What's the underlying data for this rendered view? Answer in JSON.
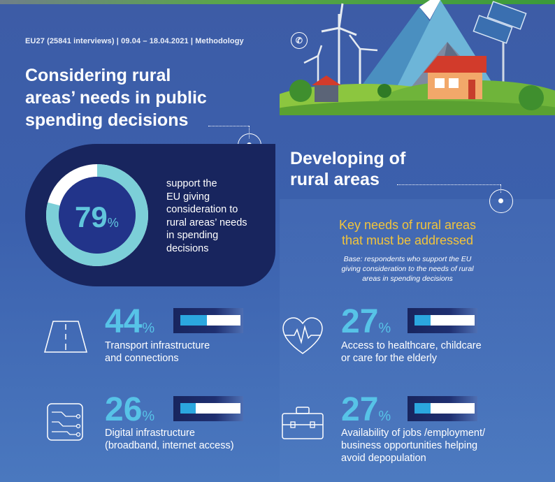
{
  "header": {
    "meta": "EU27 (25841 interviews) | 09.04 – 18.04.2021 | Methodology",
    "title_lines": [
      "Considering rural",
      "areas’ needs in public",
      "spending decisions"
    ]
  },
  "support": {
    "percent": "79",
    "unit": "%",
    "value_fraction": 0.79,
    "text_lines": [
      "support the",
      "EU giving",
      "consideration to",
      "rural areas’ needs",
      "in spending",
      "decisions"
    ]
  },
  "developing": {
    "title_lines": [
      "Developing of",
      "rural areas"
    ],
    "key_title_lines": [
      "Key needs of rural areas",
      "that must be addressed"
    ],
    "base_lines": [
      "Base: respondents who support the EU",
      "giving consideration to the needs of rural",
      "areas in spending decisions"
    ]
  },
  "stats": [
    {
      "value": "44",
      "unit": "%",
      "fraction": 0.44,
      "icon": "road-icon",
      "lines": [
        "Transport infrastructure",
        "and connections"
      ]
    },
    {
      "value": "27",
      "unit": "%",
      "fraction": 0.27,
      "icon": "heartbeat-icon",
      "lines": [
        "Access to healthcare, childcare",
        "or care for the elderly"
      ]
    },
    {
      "value": "26",
      "unit": "%",
      "fraction": 0.26,
      "icon": "circuit-icon",
      "lines": [
        "Digital infrastructure",
        "(broadband, internet access)"
      ]
    },
    {
      "value": "27",
      "unit": "%",
      "fraction": 0.27,
      "icon": "briefcase-icon",
      "lines": [
        "Availability of jobs /employment/",
        "business opportunities helping",
        "avoid depopulation"
      ]
    }
  ],
  "colors": {
    "background": "#3d5ca6",
    "dark_panel": "#18255e",
    "accent_cyan": "#57c3e7",
    "accent_yellow": "#f2c43b",
    "bar_fill": "#2ba7df"
  }
}
